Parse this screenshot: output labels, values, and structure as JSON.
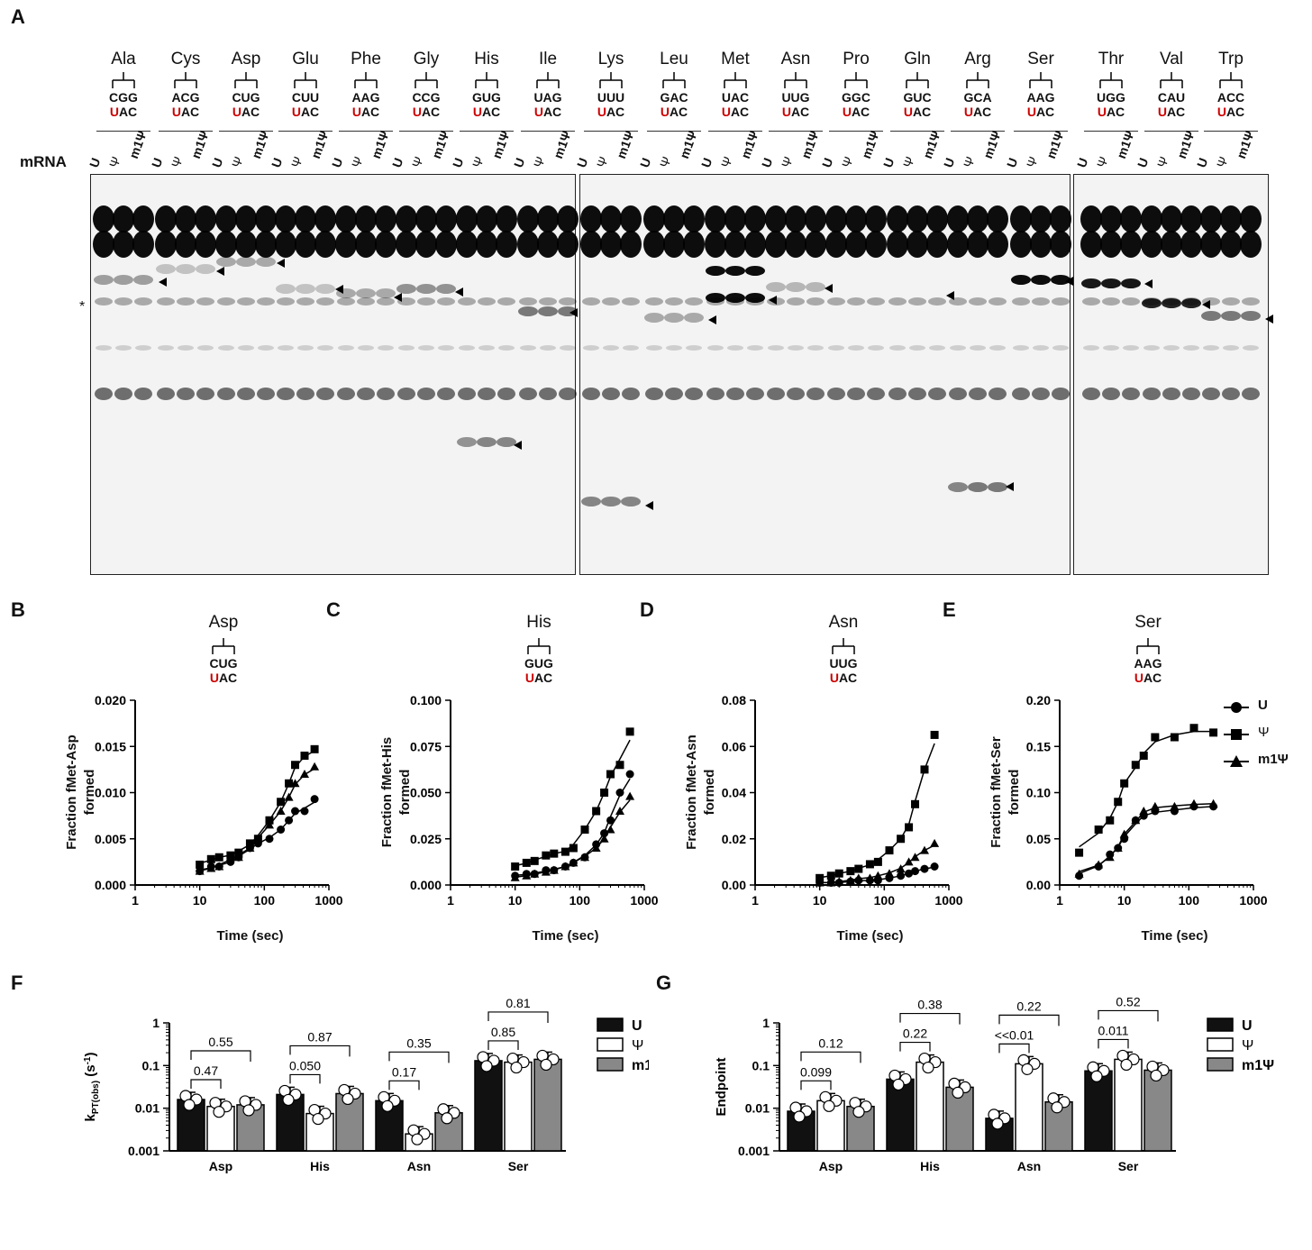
{
  "panel_a": {
    "label": "A",
    "mrna_label": "mRNA",
    "lane_labels": [
      "U",
      "Ψ",
      "m1Ψ"
    ],
    "amino_acids": [
      {
        "name": "Ala",
        "anticodon": "CGG",
        "codon_rest": "AC",
        "first": "U"
      },
      {
        "name": "Cys",
        "anticodon": "ACG",
        "codon_rest": "AC",
        "first": "U"
      },
      {
        "name": "Asp",
        "anticodon": "CUG",
        "codon_rest": "AC",
        "first": "U"
      },
      {
        "name": "Glu",
        "anticodon": "CUU",
        "codon_rest": "AC",
        "first": "U"
      },
      {
        "name": "Phe",
        "anticodon": "AAG",
        "codon_rest": "AC",
        "first": "U"
      },
      {
        "name": "Gly",
        "anticodon": "CCG",
        "codon_rest": "AC",
        "first": "U"
      },
      {
        "name": "His",
        "anticodon": "GUG",
        "codon_rest": "AC",
        "first": "U"
      },
      {
        "name": "Ile",
        "anticodon": "UAG",
        "codon_rest": "AC",
        "first": "U"
      },
      {
        "name": "Lys",
        "anticodon": "UUU",
        "codon_rest": "AC",
        "first": "U"
      },
      {
        "name": "Leu",
        "anticodon": "GAC",
        "codon_rest": "AC",
        "first": "U"
      },
      {
        "name": "Met",
        "anticodon": "UAC",
        "codon_rest": "AC",
        "first": "U"
      },
      {
        "name": "Asn",
        "anticodon": "UUG",
        "codon_rest": "AC",
        "first": "U"
      },
      {
        "name": "Pro",
        "anticodon": "GGC",
        "codon_rest": "AC",
        "first": "U"
      },
      {
        "name": "Gln",
        "anticodon": "GUC",
        "codon_rest": "AC",
        "first": "U"
      },
      {
        "name": "Arg",
        "anticodon": "GCA",
        "codon_rest": "AC",
        "first": "U"
      },
      {
        "name": "Ser",
        "anticodon": "AAG",
        "codon_rest": "AC",
        "first": "U"
      },
      {
        "name": "Thr",
        "anticodon": "UGG",
        "codon_rest": "AC",
        "first": "U"
      },
      {
        "name": "Val",
        "anticodon": "CAU",
        "codon_rest": "AC",
        "first": "U"
      },
      {
        "name": "Trp",
        "anticodon": "ACC",
        "codon_rest": "AC",
        "first": "U"
      }
    ],
    "asterisk": "*"
  },
  "kinetics": [
    {
      "label": "B",
      "aa": "Asp",
      "anticodon": "CUG",
      "first": "U",
      "codon_rest": "AC",
      "ylabel": "Fraction fMet-Asp formed",
      "xlabel": "Time (sec)",
      "yticks": [
        "0.000",
        "0.005",
        "0.010",
        "0.015",
        "0.020"
      ],
      "ymax": 0.02
    },
    {
      "label": "C",
      "aa": "His",
      "anticodon": "GUG",
      "first": "U",
      "codon_rest": "AC",
      "ylabel": "Fraction fMet-His formed",
      "xlabel": "Time (sec)",
      "yticks": [
        "0.000",
        "0.025",
        "0.050",
        "0.075",
        "0.100"
      ],
      "ymax": 0.1
    },
    {
      "label": "D",
      "aa": "Asn",
      "anticodon": "UUG",
      "first": "U",
      "codon_rest": "AC",
      "ylabel": "Fraction fMet-Asn formed",
      "xlabel": "Time (sec)",
      "yticks": [
        "0.00",
        "0.02",
        "0.04",
        "0.06",
        "0.08"
      ],
      "ymax": 0.08
    },
    {
      "label": "E",
      "aa": "Ser",
      "anticodon": "AAG",
      "first": "U",
      "codon_rest": "AC",
      "ylabel": "Fraction fMet-Ser formed",
      "xlabel": "Time (sec)",
      "yticks": [
        "0.00",
        "0.05",
        "0.10",
        "0.15",
        "0.20"
      ],
      "ymax": 0.2
    }
  ],
  "xticks": [
    "1",
    "10",
    "100",
    "1000"
  ],
  "legend": {
    "u": "U",
    "psi": "Ψ",
    "m1psi": "m1Ψ"
  },
  "chart_data": [
    {
      "type": "scatter",
      "panel": "B",
      "xscale": "log",
      "xlim": [
        1,
        1000
      ],
      "ylim": [
        0,
        0.02
      ],
      "series": [
        {
          "name": "U",
          "x": [
            10,
            15,
            20,
            30,
            40,
            60,
            80,
            120,
            180,
            240,
            300,
            420,
            600
          ],
          "y": [
            0.0015,
            0.002,
            0.002,
            0.0025,
            0.003,
            0.004,
            0.0045,
            0.005,
            0.006,
            0.007,
            0.008,
            0.008,
            0.0093
          ]
        },
        {
          "name": "Ψ",
          "x": [
            10,
            15,
            20,
            30,
            40,
            60,
            80,
            120,
            180,
            240,
            300,
            420,
            600
          ],
          "y": [
            0.0022,
            0.0028,
            0.003,
            0.0032,
            0.0035,
            0.0045,
            0.005,
            0.007,
            0.009,
            0.011,
            0.013,
            0.014,
            0.0147
          ]
        },
        {
          "name": "m1Ψ",
          "x": [
            10,
            15,
            20,
            30,
            40,
            60,
            80,
            120,
            180,
            240,
            300,
            420,
            600
          ],
          "y": [
            0.0015,
            0.0018,
            0.002,
            0.003,
            0.003,
            0.004,
            0.005,
            0.0065,
            0.008,
            0.0095,
            0.011,
            0.012,
            0.0128
          ]
        }
      ]
    },
    {
      "type": "scatter",
      "panel": "C",
      "xscale": "log",
      "xlim": [
        1,
        1000
      ],
      "ylim": [
        0,
        0.1
      ],
      "series": [
        {
          "name": "U",
          "x": [
            10,
            15,
            20,
            30,
            40,
            60,
            80,
            120,
            180,
            240,
            300,
            420,
            600
          ],
          "y": [
            0.005,
            0.006,
            0.006,
            0.008,
            0.008,
            0.01,
            0.012,
            0.015,
            0.022,
            0.028,
            0.035,
            0.05,
            0.06
          ]
        },
        {
          "name": "Ψ",
          "x": [
            10,
            15,
            20,
            30,
            40,
            60,
            80,
            120,
            180,
            240,
            300,
            420,
            600
          ],
          "y": [
            0.01,
            0.012,
            0.013,
            0.016,
            0.017,
            0.018,
            0.02,
            0.03,
            0.04,
            0.05,
            0.06,
            0.065,
            0.083
          ]
        },
        {
          "name": "m1Ψ",
          "x": [
            10,
            15,
            20,
            30,
            40,
            60,
            80,
            120,
            180,
            240,
            300,
            420,
            600
          ],
          "y": [
            0.004,
            0.005,
            0.006,
            0.007,
            0.008,
            0.01,
            0.012,
            0.015,
            0.02,
            0.025,
            0.03,
            0.04,
            0.048
          ]
        }
      ]
    },
    {
      "type": "scatter",
      "panel": "D",
      "xscale": "log",
      "xlim": [
        1,
        1000
      ],
      "ylim": [
        0,
        0.08
      ],
      "series": [
        {
          "name": "U",
          "x": [
            10,
            15,
            20,
            30,
            40,
            60,
            80,
            120,
            180,
            240,
            300,
            420,
            600
          ],
          "y": [
            0.001,
            0.001,
            0.001,
            0.0015,
            0.002,
            0.002,
            0.002,
            0.003,
            0.004,
            0.005,
            0.006,
            0.007,
            0.008
          ]
        },
        {
          "name": "Ψ",
          "x": [
            10,
            15,
            20,
            30,
            40,
            60,
            80,
            120,
            180,
            240,
            300,
            420,
            600
          ],
          "y": [
            0.003,
            0.004,
            0.005,
            0.006,
            0.007,
            0.009,
            0.01,
            0.015,
            0.02,
            0.025,
            0.035,
            0.05,
            0.065
          ]
        },
        {
          "name": "m1Ψ",
          "x": [
            10,
            15,
            20,
            30,
            40,
            60,
            80,
            120,
            180,
            240,
            300,
            420,
            600
          ],
          "y": [
            0.001,
            0.001,
            0.0015,
            0.002,
            0.003,
            0.003,
            0.004,
            0.005,
            0.007,
            0.01,
            0.012,
            0.015,
            0.018
          ]
        }
      ]
    },
    {
      "type": "scatter",
      "panel": "E",
      "xscale": "log",
      "xlim": [
        1,
        1000
      ],
      "ylim": [
        0,
        0.2
      ],
      "series": [
        {
          "name": "U",
          "x": [
            2,
            4,
            6,
            8,
            10,
            15,
            20,
            30,
            60,
            120,
            240
          ],
          "y": [
            0.01,
            0.02,
            0.033,
            0.04,
            0.05,
            0.07,
            0.075,
            0.08,
            0.08,
            0.085,
            0.085
          ]
        },
        {
          "name": "Ψ",
          "x": [
            2,
            4,
            6,
            8,
            10,
            15,
            20,
            30,
            60,
            120,
            240
          ],
          "y": [
            0.035,
            0.06,
            0.07,
            0.09,
            0.11,
            0.13,
            0.14,
            0.16,
            0.16,
            0.17,
            0.165
          ]
        },
        {
          "name": "m1Ψ",
          "x": [
            2,
            4,
            6,
            8,
            10,
            15,
            20,
            30,
            60,
            120,
            240
          ],
          "y": [
            0.012,
            0.022,
            0.03,
            0.04,
            0.055,
            0.07,
            0.08,
            0.085,
            0.085,
            0.088,
            0.088
          ]
        }
      ]
    },
    {
      "type": "bar",
      "panel": "F",
      "yscale": "log",
      "ylim": [
        0.001,
        1
      ],
      "ylabel": "kPT(obs) (s-1)",
      "categories": [
        "Asp",
        "His",
        "Asn",
        "Ser"
      ],
      "series": [
        {
          "name": "U",
          "values": [
            0.016,
            0.021,
            0.015,
            0.13
          ]
        },
        {
          "name": "Ψ",
          "values": [
            0.011,
            0.0075,
            0.0025,
            0.12
          ]
        },
        {
          "name": "m1Ψ",
          "values": [
            0.012,
            0.022,
            0.0078,
            0.14
          ]
        }
      ],
      "comparisons": {
        "Asp": [
          "0.47",
          "0.55"
        ],
        "His": [
          "0.050",
          "0.87"
        ],
        "Asn": [
          "0.17",
          "0.35"
        ],
        "Ser": [
          "0.85",
          "0.81"
        ]
      }
    },
    {
      "type": "bar",
      "panel": "G",
      "yscale": "log",
      "ylim": [
        0.001,
        1
      ],
      "ylabel": "Endpoint",
      "categories": [
        "Asp",
        "His",
        "Asn",
        "Ser"
      ],
      "series": [
        {
          "name": "U",
          "values": [
            0.0085,
            0.048,
            0.0058,
            0.075
          ]
        },
        {
          "name": "Ψ",
          "values": [
            0.015,
            0.12,
            0.11,
            0.14
          ]
        },
        {
          "name": "m1Ψ",
          "values": [
            0.011,
            0.031,
            0.014,
            0.078
          ]
        }
      ],
      "comparisons": {
        "Asp": [
          "0.099",
          "0.12"
        ],
        "His": [
          "0.22",
          "0.38"
        ],
        "Asn": [
          "<<0.01",
          "0.22"
        ],
        "Ser": [
          "0.011",
          "0.52"
        ]
      }
    }
  ],
  "bars": {
    "f": {
      "label": "F",
      "ylabel": "k",
      "ysub": "PT(obs)",
      "yunit": " (s",
      "yexp": "-1",
      "yclose": ")",
      "yticks": [
        "0.001",
        "0.01",
        "0.1",
        "1"
      ]
    },
    "g": {
      "label": "G",
      "ylabel": "Endpoint",
      "yticks": [
        "0.001",
        "0.01",
        "0.1",
        "1"
      ]
    }
  }
}
